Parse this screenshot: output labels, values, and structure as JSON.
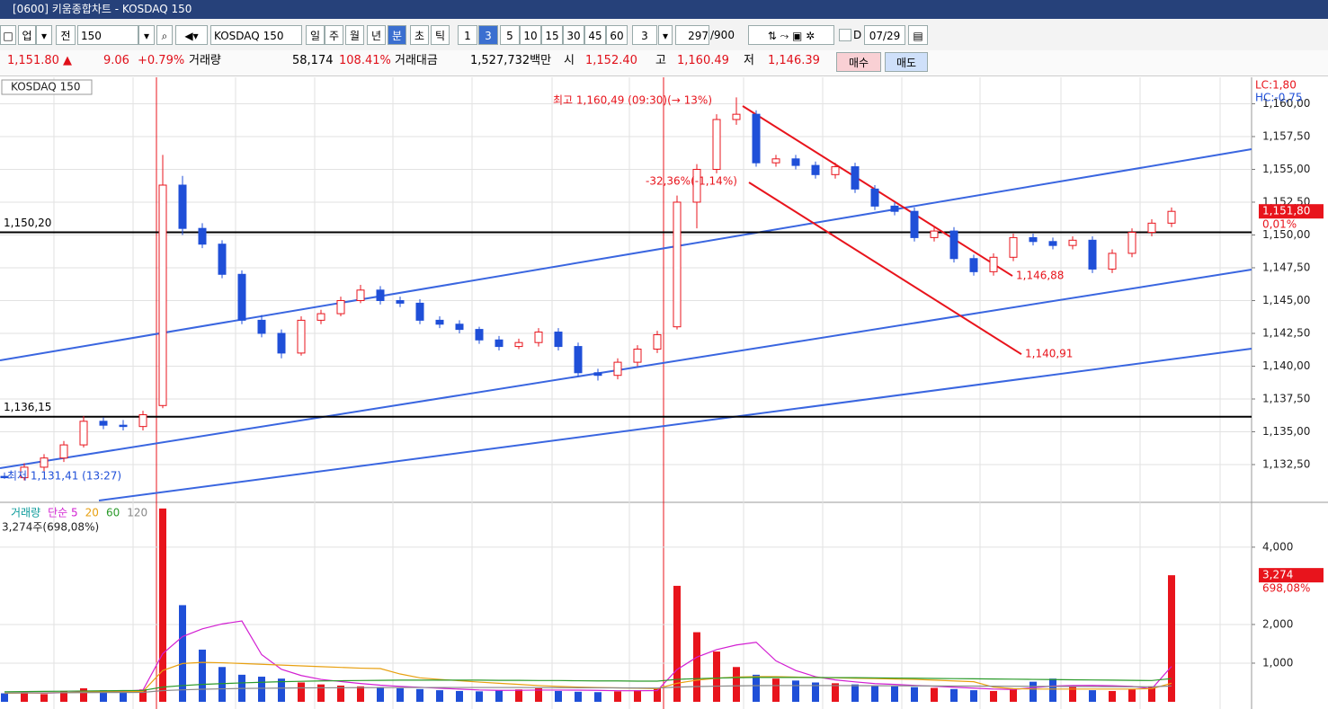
{
  "window": {
    "title": "[0600] 키움종합차트 - KOSDAQ 150"
  },
  "toolbar": {
    "market": "업",
    "scope": "전",
    "code": "150",
    "name": "KOSDAQ 150",
    "periods": [
      "일",
      "주",
      "월",
      "년",
      "분",
      "초",
      "틱"
    ],
    "minutes": [
      "1",
      "3",
      "5",
      "10",
      "15",
      "30",
      "45",
      "60"
    ],
    "count_input": "3",
    "bars": "297",
    "max_bars": "/900",
    "date_flag": "D",
    "date": "07/29"
  },
  "quote": {
    "price": "1,151.80 ▲",
    "change": "9.06",
    "change_pct": "+0.79%",
    "volume_label": "거래량",
    "volume": "58,174",
    "volume_pct": "108.41%",
    "amount_label": "거래대금",
    "amount": "1,527,732백만",
    "open_label": "시",
    "open": "1,152.40",
    "high_label": "고",
    "high": "1,160.49",
    "low_label": "저",
    "low": "1,146.39",
    "buy": "매수",
    "sell": "매도"
  },
  "chart_data": [
    {
      "type": "candlestick",
      "title": "KOSDAQ 150",
      "up_color": "#e8141c",
      "down_color": "#1f4fd8",
      "grid": true,
      "open": [
        1131.6,
        1131.5,
        1132.3,
        1133.0,
        1134.0,
        1135.8,
        1135.5,
        1135.4,
        1137.0,
        1153.8,
        1150.5,
        1149.3,
        1147.0,
        1143.5,
        1142.5,
        1141.0,
        1143.5,
        1144.0,
        1145.0,
        1145.8,
        1145.0,
        1144.8,
        1143.5,
        1143.2,
        1142.8,
        1142.0,
        1141.5,
        1141.8,
        1142.6,
        1141.5,
        1139.5,
        1139.3,
        1140.3,
        1141.3,
        1143.0,
        1152.5,
        1155.0,
        1158.8,
        1159.2,
        1155.5,
        1155.8,
        1155.3,
        1154.6,
        1155.2,
        1153.5,
        1152.2,
        1151.8,
        1149.8,
        1150.3,
        1148.2,
        1147.2,
        1148.3,
        1149.8,
        1149.5,
        1149.2,
        1149.6,
        1147.4,
        1148.6,
        1150.2,
        1150.9
      ],
      "high": [
        1131.9,
        1132.6,
        1133.3,
        1134.3,
        1136.2,
        1136.1,
        1135.9,
        1136.6,
        1156.1,
        1154.5,
        1150.9,
        1149.6,
        1147.3,
        1143.9,
        1142.8,
        1143.8,
        1144.3,
        1145.3,
        1146.2,
        1146.1,
        1145.3,
        1145.1,
        1143.8,
        1143.5,
        1143.0,
        1142.3,
        1142.1,
        1142.9,
        1142.9,
        1141.8,
        1139.8,
        1140.6,
        1141.6,
        1142.7,
        1153.0,
        1155.4,
        1159.2,
        1160.49,
        1159.5,
        1156.1,
        1156.1,
        1155.6,
        1155.5,
        1155.5,
        1153.8,
        1152.5,
        1152.1,
        1150.6,
        1150.6,
        1148.5,
        1148.6,
        1150.1,
        1150.1,
        1149.8,
        1149.9,
        1149.9,
        1148.9,
        1150.5,
        1151.2,
        1152.1
      ],
      "low": [
        1131.41,
        1131.3,
        1132.0,
        1132.7,
        1133.8,
        1135.2,
        1135.1,
        1135.1,
        1136.8,
        1150.0,
        1149.0,
        1146.7,
        1143.2,
        1142.2,
        1140.6,
        1140.8,
        1143.2,
        1143.8,
        1144.8,
        1144.7,
        1144.5,
        1143.2,
        1142.9,
        1142.5,
        1141.7,
        1141.2,
        1141.3,
        1141.5,
        1141.2,
        1139.2,
        1138.9,
        1139.0,
        1140.0,
        1141.0,
        1142.8,
        1150.5,
        1154.7,
        1158.4,
        1155.2,
        1155.2,
        1155.0,
        1154.3,
        1154.3,
        1153.2,
        1151.9,
        1151.5,
        1149.5,
        1149.5,
        1147.9,
        1146.9,
        1146.9,
        1148.0,
        1149.2,
        1148.9,
        1148.9,
        1147.1,
        1147.1,
        1148.3,
        1149.9,
        1150.6
      ],
      "close": [
        1131.5,
        1132.3,
        1133.0,
        1134.0,
        1135.8,
        1135.5,
        1135.4,
        1136.3,
        1153.8,
        1150.5,
        1149.3,
        1147.0,
        1143.5,
        1142.5,
        1141.0,
        1143.5,
        1144.0,
        1145.0,
        1145.8,
        1145.0,
        1144.8,
        1143.5,
        1143.2,
        1142.8,
        1142.0,
        1141.5,
        1141.8,
        1142.6,
        1141.5,
        1139.5,
        1139.3,
        1140.3,
        1141.3,
        1142.4,
        1152.5,
        1155.0,
        1158.8,
        1159.2,
        1155.5,
        1155.8,
        1155.3,
        1154.6,
        1155.2,
        1153.5,
        1152.2,
        1151.8,
        1149.8,
        1150.3,
        1148.2,
        1147.2,
        1148.3,
        1149.8,
        1149.5,
        1149.2,
        1149.6,
        1147.4,
        1148.6,
        1150.2,
        1150.9,
        1151.8
      ],
      "ylim": [
        1129.76,
        1161.95
      ],
      "yticks": [
        {
          "value": 1132.5,
          "label": "1,132,50"
        },
        {
          "value": 1135,
          "label": "1,135,00"
        },
        {
          "value": 1137.5,
          "label": "1,137,50"
        },
        {
          "value": 1140,
          "label": "1,140,00"
        },
        {
          "value": 1142.5,
          "label": "1,142,50"
        },
        {
          "value": 1145,
          "label": "1,145,00"
        },
        {
          "value": 1147.5,
          "label": "1,147,50"
        },
        {
          "value": 1150,
          "label": "1,150,00"
        },
        {
          "value": 1152.5,
          "label": "1,152,50"
        },
        {
          "value": 1155,
          "label": "1,155,00"
        },
        {
          "value": 1157.5,
          "label": "1,157,50"
        },
        {
          "value": 1160,
          "label": "1,160,00"
        }
      ],
      "levels": [
        {
          "value": 1150.2,
          "label": "1,150,20"
        },
        {
          "value": 1136.15,
          "label": "1,136,15"
        }
      ],
      "channel_ends": [
        {
          "value": 1146.88,
          "label": "1,146,88"
        },
        {
          "value": 1140.91,
          "label": "1,140,91"
        }
      ],
      "high_note": "최고 1,160,49 (09:30)(→ 13%)",
      "drop_note": "-32,36%(-1,14%)",
      "low_note": "최저 1,131,41 (13:27)",
      "lc": "LC:1,80",
      "hc": "HC:-0,75",
      "last": {
        "value": 1151.8,
        "label": "1,151,80"
      },
      "last_pct": "0,01%"
    },
    {
      "type": "volume",
      "up_color": "#e8141c",
      "down_color": "#1f4fd8",
      "summary": "3,274주(698,08%)",
      "last": {
        "value": 3274,
        "label": "3,274"
      },
      "last_pct": "698,08%",
      "ylim": [
        0,
        5090
      ],
      "yticks": [
        {
          "value": 1000,
          "label": "1,000"
        },
        {
          "value": 2000,
          "label": "2,000"
        },
        {
          "value": 4000,
          "label": "4,000"
        }
      ],
      "series": [
        {
          "name": "거래량",
          "color": "#0a9a9a",
          "values": [
            220,
            250,
            200,
            280,
            350,
            300,
            260,
            320,
            5000,
            2500,
            1350,
            900,
            700,
            650,
            600,
            500,
            450,
            420,
            400,
            380,
            350,
            330,
            300,
            280,
            270,
            300,
            320,
            350,
            280,
            260,
            250,
            270,
            300,
            350,
            3000,
            1800,
            1300,
            900,
            700,
            600,
            550,
            500,
            480,
            450,
            420,
            400,
            380,
            360,
            330,
            300,
            280,
            330,
            520,
            600,
            380,
            300,
            280,
            320,
            400,
            3274
          ]
        },
        {
          "name": "단순 5",
          "color": "#d21fd2",
          "values": [
            220,
            235,
            223,
            238,
            260,
            276,
            278,
            302,
            1246,
            1686,
            1886,
            2014,
            2090,
            1220,
            840,
            680,
            580,
            524,
            474,
            430,
            400,
            376,
            352,
            328,
            306,
            296,
            298,
            304,
            304,
            302,
            296,
            286,
            286,
            290,
            834,
            1154,
            1350,
            1470,
            1540,
            1060,
            810,
            650,
            566,
            516,
            470,
            450,
            426,
            402,
            378,
            354,
            330,
            320,
            364,
            406,
            422,
            426,
            416,
            400,
            336,
            915
          ]
        },
        {
          "name": "20",
          "color": "#e8a010",
          "values": [
            220,
            230,
            230,
            240,
            250,
            260,
            260,
            270,
            810,
            990,
            1020,
            1010,
            990,
            970,
            950,
            930,
            910,
            890,
            870,
            860,
            720,
            620,
            580,
            545,
            510,
            480,
            450,
            420,
            400,
            380,
            370,
            360,
            350,
            340,
            480,
            560,
            610,
            640,
            650,
            650,
            640,
            630,
            620,
            610,
            600,
            590,
            580,
            560,
            540,
            520,
            380,
            340,
            330,
            330,
            330,
            330,
            330,
            330,
            340,
            480
          ]
        },
        {
          "name": "60",
          "color": "#2a9a2a",
          "values": [
            260,
            265,
            270,
            275,
            280,
            285,
            290,
            295,
            380,
            420,
            450,
            470,
            490,
            505,
            520,
            530,
            540,
            545,
            550,
            555,
            560,
            560,
            560,
            560,
            560,
            555,
            555,
            550,
            550,
            545,
            540,
            540,
            535,
            535,
            580,
            600,
            615,
            625,
            630,
            630,
            630,
            628,
            626,
            624,
            620,
            615,
            610,
            605,
            600,
            595,
            590,
            585,
            580,
            575,
            570,
            565,
            560,
            555,
            550,
            600
          ]
        },
        {
          "name": "120",
          "color": "#888888",
          "values": [
            230,
            232,
            234,
            236,
            238,
            240,
            242,
            244,
            290,
            310,
            325,
            335,
            345,
            350,
            355,
            360,
            362,
            364,
            366,
            368,
            370,
            370,
            370,
            370,
            370,
            370,
            370,
            368,
            366,
            364,
            362,
            360,
            358,
            356,
            380,
            395,
            405,
            412,
            418,
            420,
            420,
            420,
            420,
            418,
            416,
            414,
            412,
            410,
            408,
            406,
            404,
            402,
            400,
            398,
            396,
            394,
            392,
            390,
            388,
            410
          ]
        }
      ]
    }
  ]
}
